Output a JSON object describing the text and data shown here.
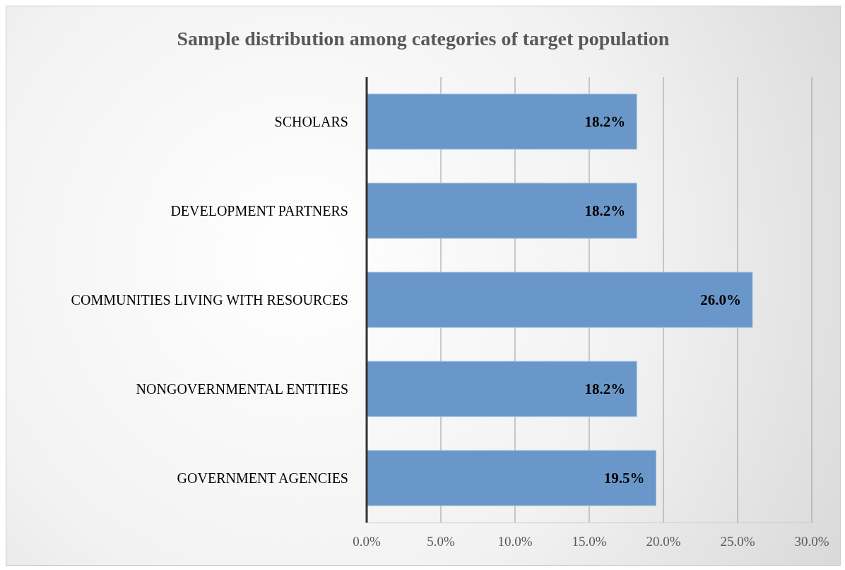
{
  "chart_data": {
    "type": "bar",
    "orientation": "horizontal",
    "title": "Sample distribution among categories of target population",
    "categories": [
      "SCHOLARS",
      "DEVELOPMENT PARTNERS",
      "COMMUNITIES LIVING WITH RESOURCES",
      "NONGOVERNMENTAL ENTITIES",
      "GOVERNMENT AGENCIES"
    ],
    "values": [
      18.2,
      18.2,
      26.0,
      18.2,
      19.5
    ],
    "value_labels": [
      "18.2%",
      "18.2%",
      "26.0%",
      "18.2%",
      "19.5%"
    ],
    "color": "#6a97c9",
    "xlim": [
      0,
      30
    ],
    "xticks": [
      {
        "value": 0,
        "label": "0.0%"
      },
      {
        "value": 5,
        "label": "5.0%"
      },
      {
        "value": 10,
        "label": "10.0%"
      },
      {
        "value": 15,
        "label": "15.0%"
      },
      {
        "value": 20,
        "label": "20.0%"
      },
      {
        "value": 25,
        "label": "25.0%"
      },
      {
        "value": 30,
        "label": "30.0%"
      }
    ],
    "grid": "x"
  }
}
